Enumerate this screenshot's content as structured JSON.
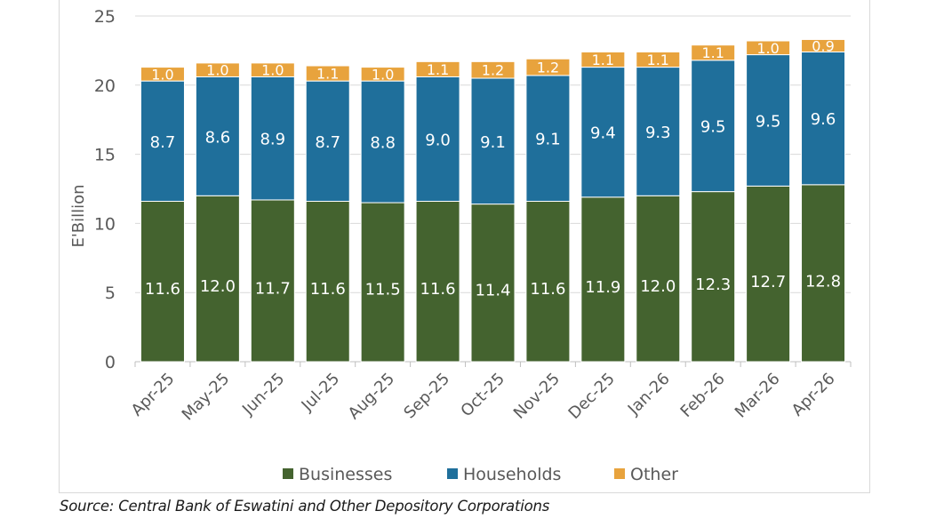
{
  "chart_data": {
    "type": "bar",
    "stacked": true,
    "categories": [
      "Apr-25",
      "May-25",
      "Jun-25",
      "Jul-25",
      "Aug-25",
      "Sep-25",
      "Oct-25",
      "Nov-25",
      "Dec-25",
      "Jan-26",
      "Feb-26",
      "Mar-26",
      "Apr-26"
    ],
    "series": [
      {
        "name": "Businesses",
        "color": "#44632f",
        "values": [
          11.6,
          12.0,
          11.7,
          11.6,
          11.5,
          11.6,
          11.4,
          11.6,
          11.9,
          12.0,
          12.3,
          12.7,
          12.8
        ]
      },
      {
        "name": "Households",
        "color": "#1f6f9b",
        "values": [
          8.7,
          8.6,
          8.9,
          8.7,
          8.8,
          9.0,
          9.1,
          9.1,
          9.4,
          9.3,
          9.5,
          9.5,
          9.6
        ]
      },
      {
        "name": "Other",
        "color": "#e8a33d",
        "values": [
          1.0,
          1.0,
          1.0,
          1.1,
          1.0,
          1.1,
          1.2,
          1.2,
          1.1,
          1.1,
          1.1,
          1.0,
          0.9
        ]
      }
    ],
    "ylabel": "E'Billion",
    "ylim": [
      0,
      25
    ],
    "yticks": [
      0,
      5,
      10,
      15,
      20,
      25
    ],
    "grid": true,
    "legend": "bottom"
  },
  "source": "Source: Central Bank of Eswatini and Other Depository Corporations"
}
